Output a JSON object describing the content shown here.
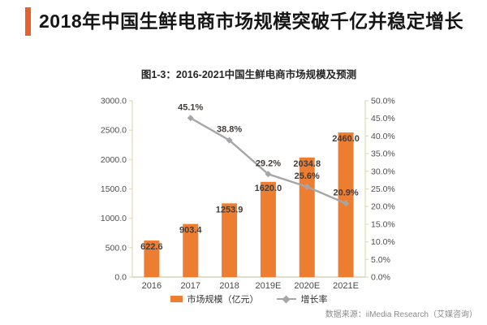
{
  "page": {
    "title": "2018年中国生鲜电商市场规模突破千亿并稳定增长",
    "accent_color": "#e8602c"
  },
  "chart": {
    "title": "图1-3：2016-2021中国生鲜电商市场规模及预测",
    "legend": [
      {
        "label": "市场规模（亿元）",
        "type": "bar",
        "color": "#ed7d31"
      },
      {
        "label": "增长率",
        "type": "line",
        "color": "#a6a6a6"
      }
    ],
    "source": "数据来源：iiMedia Research（艾媒咨询）"
  },
  "chart_data": {
    "type": "bar",
    "subtype": "bar-line-combo",
    "title": "图1-3：2016-2021中国生鲜电商市场规模及预测",
    "categories": [
      "2016",
      "2017",
      "2018",
      "2019E",
      "2020E",
      "2021E"
    ],
    "series": [
      {
        "name": "市场规模（亿元）",
        "type": "bar",
        "axis": "left",
        "color": "#ed7d31",
        "values": [
          622.6,
          903.4,
          1253.9,
          1620.0,
          2034.8,
          2460.0
        ],
        "labels": [
          "622.6",
          "903.4",
          "1253.9",
          "1620.0",
          "2034.8",
          "2460.0"
        ]
      },
      {
        "name": "增长率",
        "type": "line",
        "axis": "right",
        "color": "#a6a6a6",
        "values": [
          null,
          45.1,
          38.8,
          29.2,
          25.6,
          20.9
        ],
        "labels": [
          "",
          "45.1%",
          "38.8%",
          "29.2%",
          "25.6%",
          "20.9%"
        ]
      }
    ],
    "left_axis": {
      "min": 0,
      "max": 3000,
      "step": 500,
      "tick_labels": [
        "0.0",
        "500.0",
        "1000.0",
        "1500.0",
        "2000.0",
        "2500.0",
        "3000.0"
      ]
    },
    "right_axis": {
      "min": 0,
      "max": 50,
      "step": 5,
      "tick_labels": [
        "0.0%",
        "5.0%",
        "10.0%",
        "15.0%",
        "20.0%",
        "25.0%",
        "30.0%",
        "35.0%",
        "40.0%",
        "45.0%",
        "50.0%"
      ]
    },
    "grid": false,
    "legend_position": "bottom",
    "axis_color": "#ddddb3",
    "baseline_color": "#c9c9ad"
  }
}
